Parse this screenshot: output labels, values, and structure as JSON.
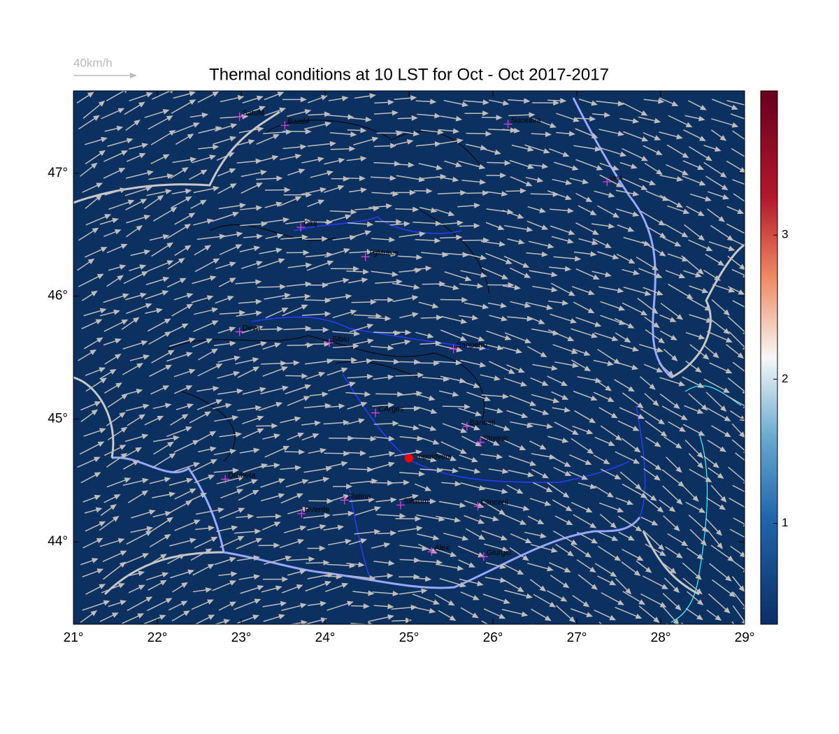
{
  "title": "Thermal conditions at 10 LST for Oct - Oct  2017-2017",
  "wind_legend": "40km/h",
  "x_axis": {
    "lim": [
      21,
      29
    ],
    "ticks": [
      {
        "value": 21,
        "label": "21°"
      },
      {
        "value": 22,
        "label": "22°"
      },
      {
        "value": 23,
        "label": "23°"
      },
      {
        "value": 24,
        "label": "24°"
      },
      {
        "value": 25,
        "label": "25°"
      },
      {
        "value": 26,
        "label": "26°"
      },
      {
        "value": 27,
        "label": "27°"
      },
      {
        "value": 28,
        "label": "28°"
      },
      {
        "value": 29,
        "label": "29°"
      }
    ]
  },
  "y_axis": {
    "lim": [
      43.33,
      47.67
    ],
    "ticks": [
      {
        "value": 44,
        "label": "44°"
      },
      {
        "value": 45,
        "label": "45°"
      },
      {
        "value": 46,
        "label": "46°"
      },
      {
        "value": 47,
        "label": "47°"
      }
    ]
  },
  "cities": [
    {
      "name": "SatuM",
      "lon": 22.98,
      "lat": 47.46
    },
    {
      "name": "BaiaM",
      "lon": 23.52,
      "lat": 47.39
    },
    {
      "name": "Suceava",
      "lon": 26.18,
      "lat": 47.4
    },
    {
      "name": "Iasi",
      "lon": 27.36,
      "lat": 46.93
    },
    {
      "name": "Cluj",
      "lon": 23.71,
      "lat": 46.56
    },
    {
      "name": "TgMures",
      "lon": 24.48,
      "lat": 46.32
    },
    {
      "name": "Deva",
      "lon": 22.98,
      "lat": 45.71
    },
    {
      "name": "Sibiu",
      "lon": 24.05,
      "lat": 45.62
    },
    {
      "name": "Sanpetru",
      "lon": 25.53,
      "lat": 45.57
    },
    {
      "name": "CArges",
      "lon": 24.6,
      "lat": 45.05
    },
    {
      "name": "Banesti",
      "lon": 25.69,
      "lat": 44.94
    },
    {
      "name": "Strejnic",
      "lon": 25.85,
      "lat": 44.81
    },
    {
      "name": "Drobeta",
      "lon": 22.81,
      "lat": 44.51
    },
    {
      "name": "Slatina",
      "lon": 24.23,
      "lat": 44.34
    },
    {
      "name": "SilGum",
      "lon": 24.9,
      "lat": 44.3
    },
    {
      "name": "Clinceni",
      "lon": 25.82,
      "lat": 44.29
    },
    {
      "name": "BVerde",
      "lon": 23.72,
      "lat": 44.23
    },
    {
      "name": "Alex",
      "lon": 25.27,
      "lat": 43.92
    },
    {
      "name": "Giurgiu",
      "lon": 25.89,
      "lat": 43.88
    }
  ],
  "site": {
    "name": "Topoloveni",
    "lon": 25.0,
    "lat": 44.68
  },
  "colorbar": {
    "lim": [
      0.3,
      4.0
    ],
    "ticks": [
      1,
      2,
      3
    ]
  }
}
